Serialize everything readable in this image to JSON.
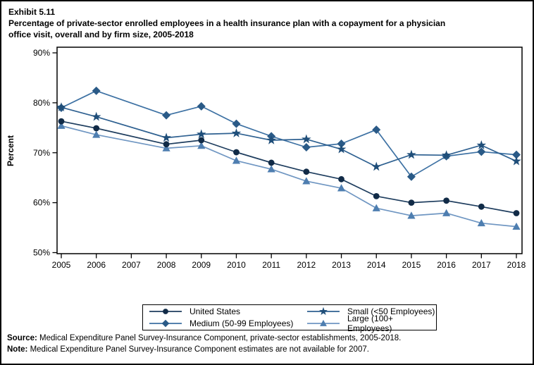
{
  "title": {
    "exhibit": "Exhibit 5.11",
    "subtitle_line1": "Percentage of private-sector enrolled employees in a health insurance plan with a copayment for a physician",
    "subtitle_line2": "office visit, overall and by firm size, 2005-2018"
  },
  "chart_data": {
    "type": "line",
    "x": [
      2005,
      2006,
      2007,
      2008,
      2009,
      2010,
      2011,
      2012,
      2013,
      2014,
      2015,
      2016,
      2017,
      2018
    ],
    "xtick_labels": [
      "2005",
      "2006",
      "2007",
      "2008",
      "2009",
      "2010",
      "2011",
      "2012",
      "2013",
      "2014",
      "2015",
      "2016",
      "2017",
      "2018"
    ],
    "missing_years": [
      2007
    ],
    "xlabel": "",
    "ylabel": "Percent",
    "ylim": [
      50,
      90
    ],
    "yticks": [
      90,
      80,
      70,
      60,
      50
    ],
    "ytick_labels": [
      "90%",
      "80%",
      "70%",
      "60%",
      "50%"
    ],
    "grid": false,
    "legend_position": "bottom",
    "series": [
      {
        "name": "United States",
        "marker": "circle",
        "marker_color": "#112B47",
        "line_color": "#1E3D5E",
        "values": [
          76.3,
          74.9,
          null,
          71.7,
          72.5,
          70.1,
          68.0,
          66.2,
          64.7,
          61.3,
          60.0,
          60.4,
          59.2,
          57.9
        ]
      },
      {
        "name": "Medium (50-99 Employees)",
        "marker": "diamond",
        "marker_color": "#2A5A87",
        "line_color": "#3D71A3",
        "values": [
          79.0,
          82.4,
          null,
          77.5,
          79.3,
          75.8,
          73.3,
          71.1,
          71.8,
          74.6,
          65.2,
          69.3,
          70.2,
          69.6
        ]
      },
      {
        "name": "Small (<50 Employees)",
        "marker": "star",
        "marker_color": "#1F4E79",
        "line_color": "#2F6191",
        "values": [
          79.1,
          77.2,
          null,
          73.0,
          73.7,
          73.9,
          72.5,
          72.7,
          70.7,
          67.2,
          69.6,
          69.5,
          71.5,
          68.3
        ]
      },
      {
        "name": "Large (100+ Employees)",
        "marker": "triangle",
        "marker_color": "#4E7EB0",
        "line_color": "#6F96C2",
        "values": [
          75.4,
          73.6,
          null,
          70.9,
          71.4,
          68.4,
          66.7,
          64.3,
          62.9,
          58.9,
          57.4,
          57.9,
          55.9,
          55.2
        ]
      }
    ]
  },
  "legend": {
    "items": [
      {
        "label": "United States",
        "series_index": 0
      },
      {
        "label": "Small (<50 Employees)",
        "series_index": 2
      },
      {
        "label": "Medium (50-99 Employees)",
        "series_index": 1
      },
      {
        "label": "Large (100+ Employees)",
        "series_index": 3
      }
    ]
  },
  "footer": {
    "source_label": "Source:",
    "source_text": " Medical Expenditure Panel Survey-Insurance Component, private-sector establishments, 2005-2018.",
    "note_label": "Note:",
    "note_text": " Medical Expenditure Panel Survey-Insurance Component estimates are not available for 2007."
  }
}
